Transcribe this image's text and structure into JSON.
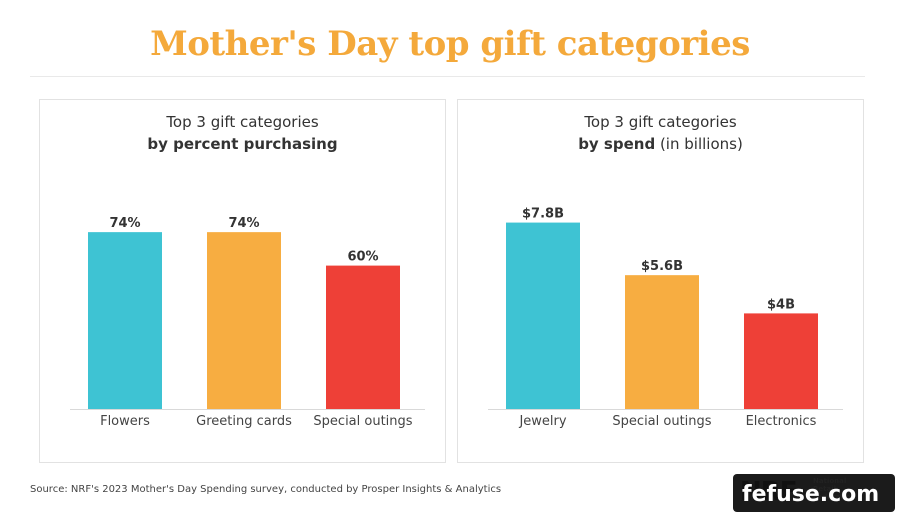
{
  "title": "Mother's Day top gift categories",
  "chart_data": [
    {
      "type": "bar",
      "title_line1": "Top 3 gift categories",
      "title_line2_bold": "by percent purchasing",
      "title_line2_rest": "",
      "categories": [
        "Flowers",
        "Greeting cards",
        "Special outings"
      ],
      "values": [
        74,
        74,
        60
      ],
      "value_labels": [
        "74%",
        "74%",
        "60%"
      ],
      "colors": [
        "#3ec3d3",
        "#f7ad41",
        "#ee4037"
      ],
      "ylim": [
        0,
        100
      ],
      "grid": false
    },
    {
      "type": "bar",
      "title_line1": "Top 3 gift categories",
      "title_line2_bold": "by spend",
      "title_line2_rest": " (in billions)",
      "categories": [
        "Jewelry",
        "Special outings",
        "Electronics"
      ],
      "values": [
        7.8,
        5.6,
        4
      ],
      "value_labels": [
        "$7.8B",
        "$5.6B",
        "$4B"
      ],
      "colors": [
        "#3ec3d3",
        "#f7ad41",
        "#ee4037"
      ],
      "ylim": [
        0,
        10
      ],
      "grid": false
    }
  ],
  "footer": {
    "source": "Source: NRF's 2023 Mother's Day Spending survey, conducted by Prosper Insights & Analytics",
    "logo_text": "NRF",
    "logo_subtext": "National Retail Federation",
    "watermark": "fefuse.com"
  }
}
